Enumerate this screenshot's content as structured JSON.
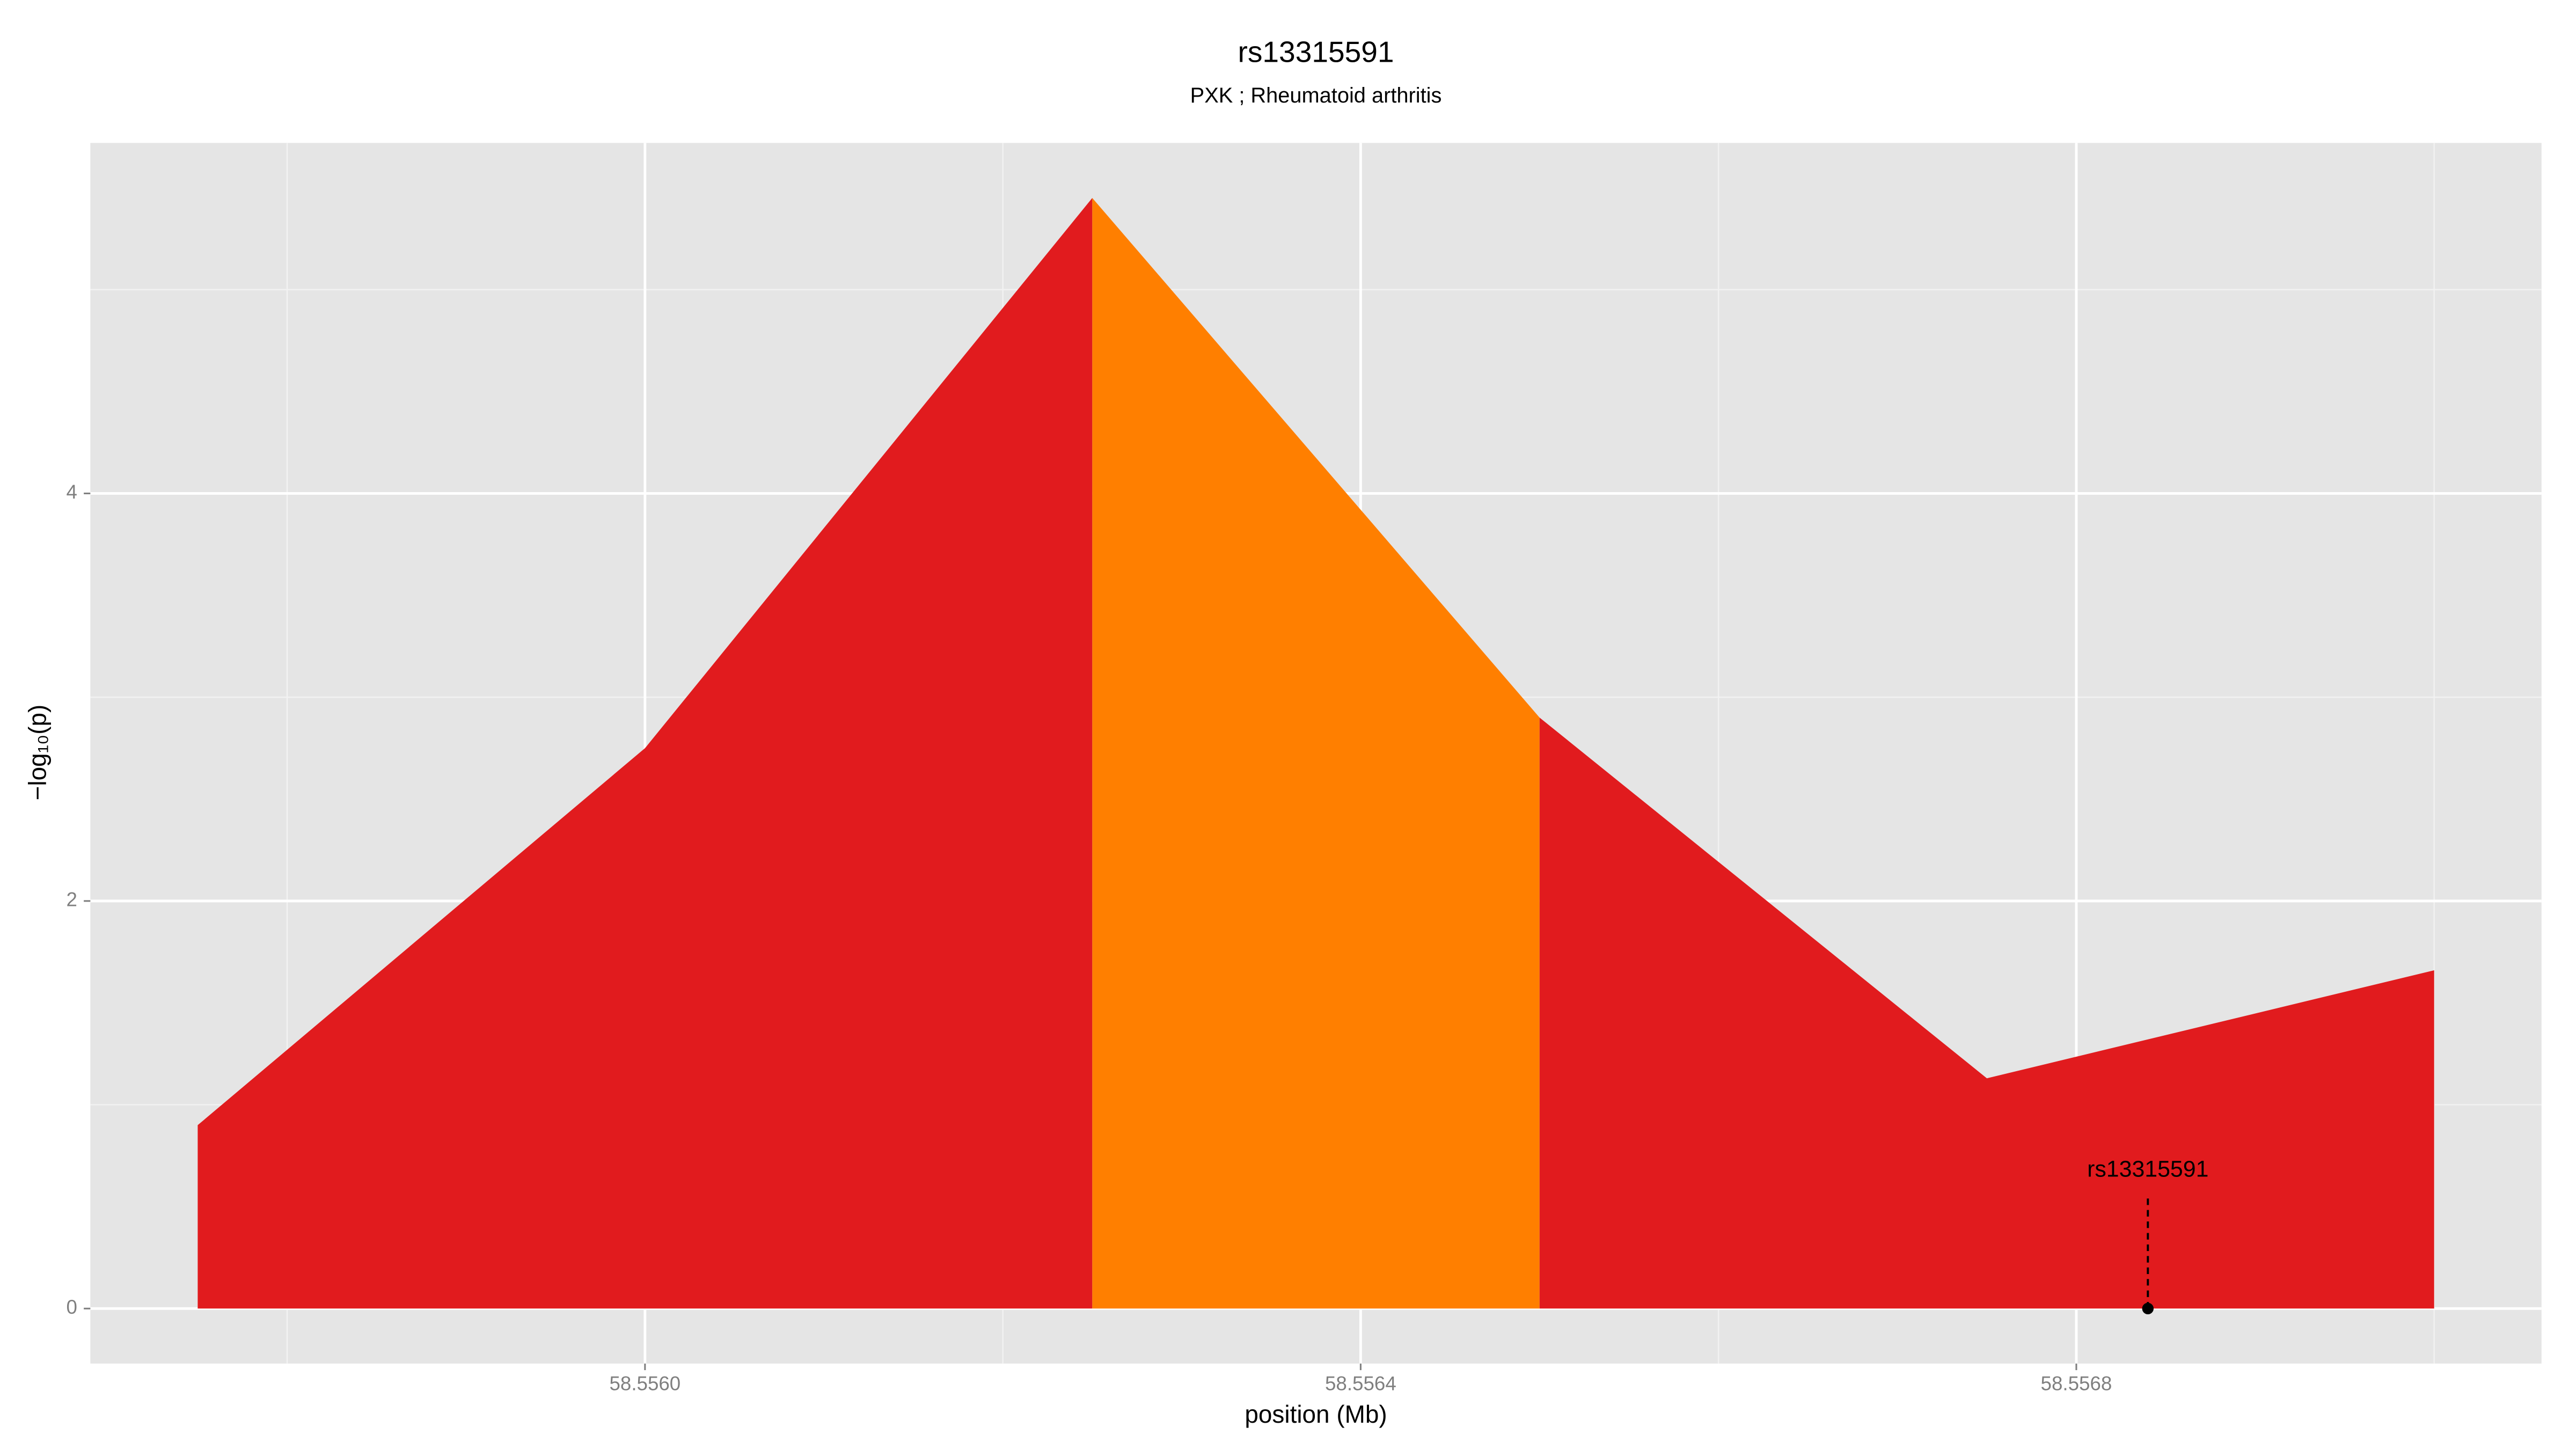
{
  "chart_data": {
    "type": "area",
    "title": "rs13315591",
    "subtitle": "PXK ; Rheumatoid arthritis",
    "xlabel": "position (Mb)",
    "ylabel": "−log₁₀(p)",
    "series": [
      {
        "color": "#e11b1e",
        "x": [
          58.55575,
          58.556,
          58.55625
        ],
        "values": [
          0.9,
          2.75,
          5.45
        ]
      },
      {
        "color": "#ff7f00",
        "x": [
          58.55625,
          58.5565
        ],
        "values": [
          5.45,
          2.9
        ]
      },
      {
        "color": "#e11b1e",
        "x": [
          58.5565,
          58.55675,
          58.557
        ],
        "values": [
          2.9,
          1.13,
          1.66
        ]
      }
    ],
    "annotations": [
      {
        "text": "rs13315591",
        "x": 58.55684,
        "y": 0
      }
    ],
    "xlim": [
      58.55569,
      58.55706
    ],
    "ylim": [
      -0.27,
      5.72
    ],
    "xticks": [
      {
        "value": 58.556,
        "label": "58.5560"
      },
      {
        "value": 58.5564,
        "label": "58.5564"
      },
      {
        "value": 58.5568,
        "label": "58.5568"
      }
    ],
    "xminorticks": [
      58.5558,
      58.5562,
      58.5566,
      58.557
    ],
    "yticks": [
      0,
      2,
      4
    ],
    "yminorticks": [
      1,
      3,
      5
    ],
    "grid": true
  }
}
